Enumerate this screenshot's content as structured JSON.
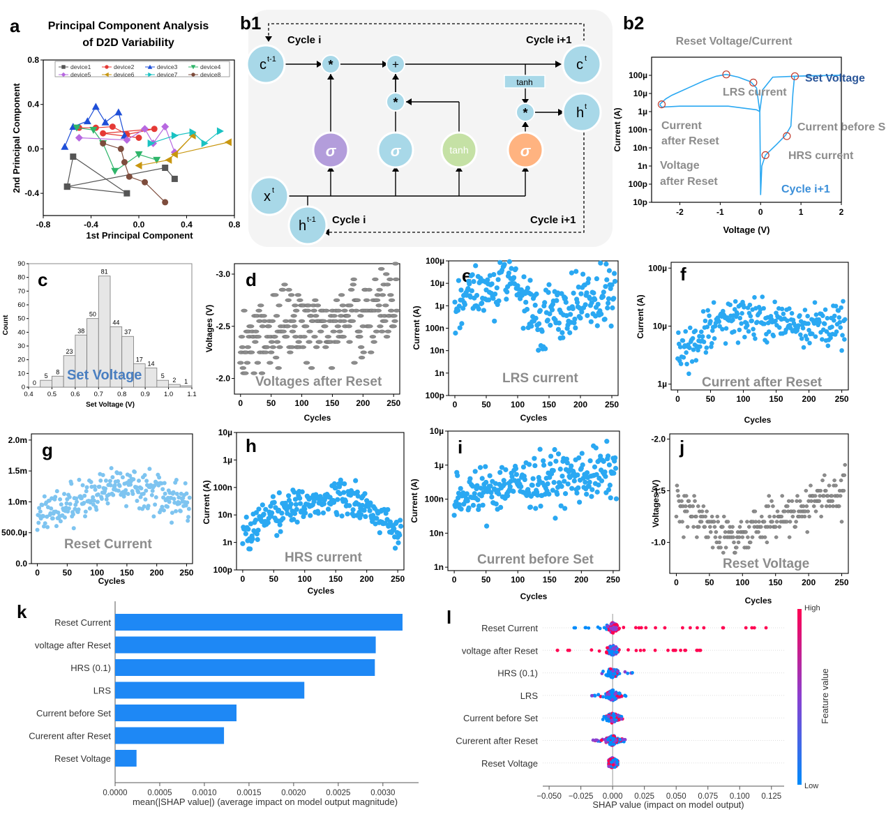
{
  "panel_labels": {
    "a": "a",
    "b1": "b1",
    "b2": "b2",
    "c": "c",
    "d": "d",
    "e": "e",
    "f": "f",
    "g": "g",
    "h": "h",
    "i": "i",
    "j": "j",
    "k": "k",
    "l": "l"
  },
  "colors": {
    "cyan": "#2aa8f2",
    "gray": "#8c8c8c",
    "bar": "#1e88f5",
    "high": "#ff0051",
    "low": "#008bfb",
    "node": "#a8d8e8",
    "purple": "#b39ddb",
    "green": "#c5e1a5",
    "orange": "#ffb380",
    "lstm_bg": "#f4f4f4"
  },
  "lstm": {
    "cycle_i_top": "Cycle i",
    "cycle_i1_top": "Cycle i+1",
    "cycle_i_bottom": "Cycle i",
    "cycle_i1_bottom": "Cycle i+1",
    "c_prev": "c",
    "c_prev_sup": "t-1",
    "c_t": "c",
    "c_t_sup": "t",
    "h_t": "h",
    "h_t_sup": "t",
    "x_t": "x",
    "x_t_sup": "t",
    "h_prev": "h",
    "h_prev_sup": "t-1",
    "mult": "*",
    "plus": "+",
    "tanh_box": "tanh",
    "sigma": "σ",
    "tanh_node": "tanh"
  },
  "chart_data": [
    {
      "panel": "a",
      "type": "line",
      "title": "Principal Component Analysis of D2D Variability",
      "title_lines": [
        "Principal Component Analysis",
        "of D2D Variability"
      ],
      "xlabel": "1st Principal Component",
      "ylabel": "2nd Principal Component",
      "xlim": [
        -0.8,
        0.8
      ],
      "ylim": [
        -0.6,
        0.8
      ],
      "xticks": [
        "-0.8",
        "-0.4",
        "0.0",
        "0.4",
        "0.8"
      ],
      "xtick_values": [
        -0.8,
        -0.4,
        0.0,
        0.4,
        0.8
      ],
      "yticks": [
        "-0.4",
        "0.0",
        "0.4",
        "0.8"
      ],
      "ytick_values": [
        -0.4,
        0.0,
        0.4,
        0.8
      ],
      "legend": "top",
      "series": [
        {
          "name": "device1",
          "marker": "square",
          "color": "#555555",
          "points": [
            [
              -0.6,
              -0.34
            ],
            [
              -0.55,
              -0.07
            ],
            [
              -0.1,
              -0.4
            ],
            [
              -0.6,
              -0.34
            ],
            [
              0.22,
              -0.17
            ],
            [
              0.3,
              -0.27
            ]
          ]
        },
        {
          "name": "device2",
          "marker": "circle",
          "color": "#e53935",
          "points": [
            [
              -0.5,
              0.19
            ],
            [
              -0.36,
              0.19
            ],
            [
              -0.22,
              0.2
            ],
            [
              -0.1,
              0.13
            ],
            [
              0.13,
              0.18
            ],
            [
              -0.3,
              0.14
            ],
            [
              0.0,
              0.1
            ]
          ]
        },
        {
          "name": "device3",
          "marker": "triangle",
          "color": "#1e4fd8",
          "points": [
            [
              -0.62,
              0.02
            ],
            [
              -0.55,
              0.2
            ],
            [
              -0.43,
              0.25
            ],
            [
              -0.36,
              0.38
            ],
            [
              -0.28,
              0.24
            ],
            [
              -0.17,
              0.33
            ],
            [
              -0.12,
              0.12
            ]
          ]
        },
        {
          "name": "device4",
          "marker": "tri-down",
          "color": "#2fb56a",
          "points": [
            [
              -0.52,
              0.19
            ],
            [
              -0.38,
              0.17
            ],
            [
              -0.3,
              0.05
            ],
            [
              -0.2,
              -0.2
            ],
            [
              0.0,
              -0.05
            ],
            [
              0.15,
              -0.1
            ]
          ]
        },
        {
          "name": "device5",
          "marker": "diamond",
          "color": "#b768e0",
          "points": [
            [
              -0.5,
              0.1
            ],
            [
              -0.1,
              0.08
            ],
            [
              0.05,
              0.18
            ],
            [
              0.12,
              0.05
            ],
            [
              0.22,
              0.2
            ],
            [
              0.3,
              -0.03
            ]
          ]
        },
        {
          "name": "device6",
          "marker": "left-triangle",
          "color": "#c8960f",
          "points": [
            [
              0.0,
              -0.15
            ],
            [
              0.25,
              -0.1
            ],
            [
              0.45,
              0.12
            ],
            [
              0.3,
              -0.05
            ],
            [
              0.75,
              0.06
            ]
          ]
        },
        {
          "name": "device7",
          "marker": "right-triangle",
          "color": "#19c2c2",
          "points": [
            [
              0.1,
              0.05
            ],
            [
              0.3,
              0.12
            ],
            [
              0.45,
              0.15
            ],
            [
              0.55,
              0.05
            ],
            [
              0.68,
              0.16
            ]
          ]
        },
        {
          "name": "device8",
          "marker": "circle",
          "color": "#7d4c3c",
          "points": [
            [
              -0.3,
              0.05
            ],
            [
              -0.15,
              0.0
            ],
            [
              -0.12,
              -0.12
            ],
            [
              -0.08,
              -0.25
            ],
            [
              0.05,
              -0.3
            ],
            [
              0.22,
              -0.48
            ]
          ]
        }
      ]
    },
    {
      "panel": "b2",
      "type": "line",
      "title": "",
      "xlabel": "Voltage (V)",
      "ylabel": "Current (A)",
      "xlim": [
        -2.7,
        2.0
      ],
      "ylim": [
        -11,
        -3
      ],
      "y_scale": "log",
      "xticks": [
        "-2",
        "-1",
        "0",
        "1",
        "2"
      ],
      "xtick_values": [
        -2,
        -1,
        0,
        1,
        2
      ],
      "yticks": [
        "10p",
        "100p",
        "1n",
        "10n",
        "100n",
        "1µ",
        "10µ",
        "100µ"
      ],
      "ytick_values": [
        -11,
        -10,
        -9,
        -8,
        -7,
        -6,
        -5,
        -4
      ],
      "curve": [
        [
          -2.5,
          -5.6
        ],
        [
          -2.35,
          -5.3
        ],
        [
          -2.2,
          -5.1
        ],
        [
          -1.8,
          -4.7
        ],
        [
          -1.4,
          -4.3
        ],
        [
          -1.1,
          -4.05
        ],
        [
          -0.85,
          -3.95
        ],
        [
          -0.55,
          -4.1
        ],
        [
          -0.25,
          -4.35
        ],
        [
          -0.1,
          -4.7
        ],
        [
          -0.02,
          -6.0
        ],
        [
          0.0,
          -10.6
        ],
        [
          0.03,
          -9.0
        ],
        [
          0.12,
          -8.4
        ],
        [
          0.4,
          -7.8
        ],
        [
          0.62,
          -7.3
        ],
        [
          0.75,
          -6.8
        ],
        [
          0.8,
          -5.0
        ],
        [
          0.84,
          -4.05
        ],
        [
          1.2,
          -4.02
        ],
        [
          2.0,
          -4.0
        ],
        [
          0.84,
          -4.05
        ],
        [
          0.3,
          -4.1
        ],
        [
          0.05,
          -4.8
        ],
        [
          -0.02,
          -6.0
        ],
        [
          -0.1,
          -5.9
        ],
        [
          -0.8,
          -5.7
        ],
        [
          -2.0,
          -5.7
        ],
        [
          -2.45,
          -5.75
        ],
        [
          -2.5,
          -5.6
        ]
      ],
      "circles": [
        [
          -2.45,
          -5.6
        ],
        [
          -0.85,
          -3.95
        ],
        [
          -0.18,
          -4.4
        ],
        [
          0.12,
          -8.4
        ],
        [
          0.65,
          -7.35
        ],
        [
          0.85,
          -4.05
        ]
      ],
      "annotations": {
        "reset": "Reset Voltage/Current",
        "set": "Set Voltage",
        "lrs": "LRS current",
        "before_set": "Current before Set",
        "after_reset_1": "Current",
        "after_reset_2": "after Reset",
        "hrs": "HRS current",
        "voltage_after_1": "Voltage",
        "voltage_after_2": "after Reset",
        "cycle": "Cycle i+1"
      }
    },
    {
      "panel": "c",
      "type": "bar",
      "title": "Set Voltage",
      "xlabel": "Set Voltage (V)",
      "ylabel": "Count",
      "xlim": [
        0.4,
        1.1
      ],
      "ylim": [
        0,
        90
      ],
      "xticks": [
        "0.4",
        "0.5",
        "0.6",
        "0.7",
        "0.8",
        "0.9",
        "1.0",
        "1.1"
      ],
      "xtick_values": [
        0.4,
        0.5,
        0.6,
        0.7,
        0.8,
        0.9,
        1.0,
        1.1
      ],
      "yticks": [
        "0",
        "10",
        "20",
        "30",
        "40",
        "50",
        "60",
        "70",
        "80",
        "90"
      ],
      "ytick_values": [
        0,
        10,
        20,
        30,
        40,
        50,
        60,
        70,
        80,
        90
      ],
      "bin_starts": [
        0.4,
        0.45,
        0.5,
        0.55,
        0.6,
        0.65,
        0.7,
        0.75,
        0.8,
        0.85,
        0.9,
        0.95,
        1.0,
        1.05
      ],
      "bin_width": 0.05,
      "values": [
        0,
        5,
        8,
        23,
        38,
        50,
        81,
        44,
        37,
        17,
        14,
        5,
        2,
        1
      ]
    },
    {
      "panel": "d",
      "type": "scatter",
      "title": "Voltages after Reset",
      "xlabel": "Cycles",
      "ylabel": "Voltages (V)",
      "xlim": [
        -10,
        260
      ],
      "ylim": [
        -1.85,
        -3.1
      ],
      "color": "#8c8c8c",
      "xticks": [
        "0",
        "50",
        "100",
        "150",
        "200",
        "250"
      ],
      "xtick_values": [
        0,
        50,
        100,
        150,
        200,
        250
      ],
      "yticks": [
        "-3.0",
        "-2.5",
        "-2.0"
      ],
      "ytick_values": [
        -3.0,
        -2.5,
        -2.0
      ],
      "n": 256,
      "y_trend": [
        [
          0,
          -2.25
        ],
        [
          80,
          -2.55
        ],
        [
          130,
          -2.5
        ],
        [
          256,
          -2.7
        ]
      ],
      "y_spread": 0.35,
      "quantize": 0.05
    },
    {
      "panel": "e",
      "type": "scatter",
      "title": "LRS current",
      "xlabel": "Cycles",
      "ylabel": "Current (A)",
      "xlim": [
        -10,
        260
      ],
      "ylim": [
        -10,
        -4
      ],
      "y_scale": "log",
      "color": "#2aa8f2",
      "xticks": [
        "0",
        "50",
        "100",
        "150",
        "200",
        "250"
      ],
      "xtick_values": [
        0,
        50,
        100,
        150,
        200,
        250
      ],
      "yticks": [
        "100p",
        "1n",
        "10n",
        "100n",
        "1µ",
        "10µ",
        "100µ"
      ],
      "ytick_values": [
        -10,
        -9,
        -8,
        -7,
        -6,
        -5,
        -4
      ],
      "n": 256,
      "y_trend": [
        [
          0,
          -6.0
        ],
        [
          90,
          -4.6
        ],
        [
          130,
          -6.5
        ],
        [
          256,
          -5.5
        ]
      ],
      "y_spread": 1.3
    },
    {
      "panel": "f",
      "type": "scatter",
      "title": "Current after Reset",
      "xlabel": "Cycles",
      "ylabel": "Current (A)",
      "xlim": [
        -10,
        260
      ],
      "ylim": [
        -6.1,
        -3.9
      ],
      "y_scale": "log",
      "color": "#2aa8f2",
      "xticks": [
        "0",
        "50",
        "100",
        "150",
        "200",
        "250"
      ],
      "xtick_values": [
        0,
        50,
        100,
        150,
        200,
        250
      ],
      "yticks": [
        "1µ",
        "10µ",
        "100µ"
      ],
      "ytick_values": [
        -6,
        -5,
        -4
      ],
      "n": 256,
      "y_trend": [
        [
          0,
          -5.5
        ],
        [
          70,
          -4.8
        ],
        [
          130,
          -4.9
        ],
        [
          256,
          -5.0
        ]
      ],
      "y_spread": 0.35
    },
    {
      "panel": "g",
      "type": "scatter",
      "title": "Reset Current",
      "xlabel": "Cycles",
      "ylabel": "",
      "xlim": [
        -10,
        260
      ],
      "ylim": [
        0,
        0.0021
      ],
      "color": "#7ec4f0",
      "xticks": [
        "0",
        "50",
        "100",
        "150",
        "200",
        "250"
      ],
      "xtick_values": [
        0,
        50,
        100,
        150,
        200,
        250
      ],
      "yticks": [
        "0.0",
        "500.0µ",
        "1.0m",
        "1.5m",
        "2.0m"
      ],
      "ytick_values": [
        0,
        0.0005,
        0.001,
        0.0015,
        0.002
      ],
      "n": 256,
      "y_trend": [
        [
          0,
          0.00075
        ],
        [
          150,
          0.0013
        ],
        [
          256,
          0.0009
        ]
      ],
      "y_spread": 0.00032
    },
    {
      "panel": "h",
      "type": "scatter",
      "title": "HRS current",
      "xlabel": "Cycles",
      "ylabel": "Current (A)",
      "xlim": [
        -10,
        260
      ],
      "ylim": [
        -10,
        -5
      ],
      "y_scale": "log",
      "color": "#2aa8f2",
      "xticks": [
        "0",
        "50",
        "100",
        "150",
        "200",
        "250"
      ],
      "xtick_values": [
        0,
        50,
        100,
        150,
        200,
        250
      ],
      "yticks": [
        "100p",
        "1n",
        "10n",
        "100n",
        "1µ",
        "10µ"
      ],
      "ytick_values": [
        -10,
        -9,
        -8,
        -7,
        -6,
        -5
      ],
      "n": 256,
      "y_trend": [
        [
          0,
          -8.6
        ],
        [
          60,
          -7.8
        ],
        [
          160,
          -7.3
        ],
        [
          256,
          -8.5
        ]
      ],
      "y_spread": 0.6
    },
    {
      "panel": "i",
      "type": "scatter",
      "title": "Current before Set",
      "xlabel": "Cycles",
      "ylabel": "Current (A)",
      "xlim": [
        -10,
        260
      ],
      "ylim": [
        -9.1,
        -5
      ],
      "y_scale": "log",
      "color": "#2aa8f2",
      "xticks": [
        "0",
        "50",
        "100",
        "150",
        "200",
        "250"
      ],
      "xtick_values": [
        0,
        50,
        100,
        150,
        200,
        250
      ],
      "yticks": [
        "1n",
        "10n",
        "100n",
        "1µ",
        "10µ"
      ],
      "ytick_values": [
        -9,
        -8,
        -7,
        -6,
        -5
      ],
      "n": 256,
      "y_trend": [
        [
          0,
          -7.0
        ],
        [
          80,
          -6.6
        ],
        [
          256,
          -6.2
        ]
      ],
      "y_spread": 0.75
    },
    {
      "panel": "j",
      "type": "scatter",
      "title": "Reset Voltage",
      "xlabel": "Cycles",
      "ylabel": "Voltages (V)",
      "xlim": [
        -10,
        260
      ],
      "ylim": [
        -0.7,
        -2.05
      ],
      "color": "#8c8c8c",
      "xticks": [
        "0",
        "50",
        "100",
        "150",
        "200",
        "250"
      ],
      "xtick_values": [
        0,
        50,
        100,
        150,
        200,
        250
      ],
      "yticks": [
        "-2.0",
        "-1.5",
        "-1.0"
      ],
      "ytick_values": [
        -2.0,
        -1.5,
        -1.0
      ],
      "n": 256,
      "y_trend": [
        [
          0,
          -1.35
        ],
        [
          90,
          -1.05
        ],
        [
          256,
          -1.5
        ]
      ],
      "y_spread": 0.2,
      "quantize": 0.05
    },
    {
      "panel": "k",
      "type": "bar",
      "title": "",
      "xlabel": "mean(|SHAP value|) (average impact on model output magnitude)",
      "ylabel": "",
      "xlim": [
        0,
        0.0034
      ],
      "xticks": [
        "0.0000",
        "0.0005",
        "0.0010",
        "0.0015",
        "0.0020",
        "0.0025",
        "0.0030"
      ],
      "xtick_values": [
        0,
        0.0005,
        0.001,
        0.0015,
        0.002,
        0.0025,
        0.003
      ],
      "categories": [
        "Reset Current",
        "voltage after Reset",
        "HRS (0.1)",
        "LRS",
        "Current before Set",
        "Curerent after Reset",
        "Reset Voltage"
      ],
      "values": [
        0.00322,
        0.00292,
        0.00291,
        0.00212,
        0.00136,
        0.00122,
        0.00024
      ]
    },
    {
      "panel": "l",
      "type": "scatter",
      "title": "",
      "xlabel": "SHAP value (impact on model output)",
      "ylabel": "",
      "xlim": [
        -0.055,
        0.135
      ],
      "xticks": [
        "−0.050",
        "−0.025",
        "0.000",
        "0.025",
        "0.050",
        "0.075",
        "0.100",
        "0.125"
      ],
      "xtick_values": [
        -0.05,
        -0.025,
        0,
        0.025,
        0.05,
        0.075,
        0.1,
        0.125
      ],
      "categories": [
        "Reset Current",
        "voltage after Reset",
        "HRS (0.1)",
        "LRS",
        "Current before Set",
        "Curerent after Reset",
        "Reset Voltage"
      ],
      "spread": [
        [
          -0.036,
          0.126
        ],
        [
          -0.044,
          0.072
        ],
        [
          -0.012,
          0.018
        ],
        [
          -0.018,
          0.012
        ],
        [
          -0.008,
          0.008
        ],
        [
          -0.016,
          0.01
        ],
        [
          -0.003,
          0.004
        ]
      ],
      "colorbar": {
        "label": "Feature value",
        "high": "High",
        "low": "Low"
      }
    }
  ]
}
